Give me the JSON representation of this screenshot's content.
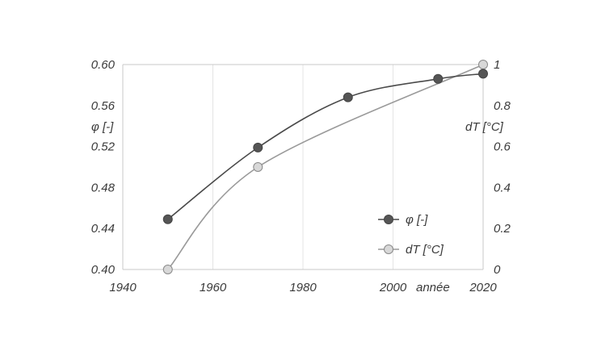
{
  "chart_data": {
    "type": "line",
    "x_ticks": [
      1940,
      1960,
      1980,
      2000,
      2020
    ],
    "xlim": [
      1940,
      2020
    ],
    "x_label": "année",
    "y_left": {
      "label": "φ [-]",
      "ylim": [
        0.4,
        0.6
      ],
      "ticks": [
        "0.40",
        "0.44",
        "0.48",
        "0.52",
        "0.56",
        "0.60"
      ]
    },
    "y_right": {
      "label": "dT [°C]",
      "ylim": [
        0,
        1
      ],
      "ticks": [
        "0",
        "0.2",
        "0.4",
        "0.6",
        "0.8",
        "1"
      ]
    },
    "grid": "vertical",
    "legend_position": "bottom-right",
    "series": [
      {
        "name": "φ [-]",
        "axis": "left",
        "color": "#4a4a4a",
        "marker_fill": "#555555",
        "x": [
          1950,
          1970,
          1990,
          2010,
          2020
        ],
        "y": [
          0.449,
          0.519,
          0.568,
          0.586,
          0.591
        ]
      },
      {
        "name": "dT [°C]",
        "axis": "right",
        "color": "#9a9a9a",
        "marker_fill": "#d8d8d8",
        "x": [
          1950,
          1970,
          2020
        ],
        "y": [
          0.0,
          0.5,
          1.0
        ]
      }
    ]
  }
}
